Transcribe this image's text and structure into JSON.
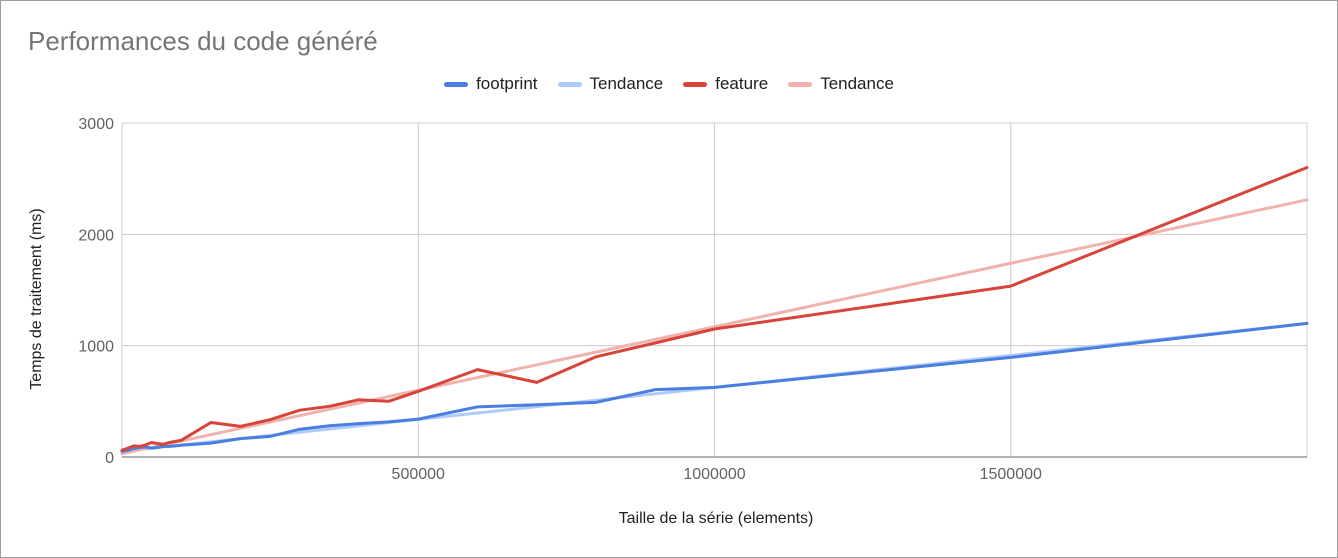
{
  "chart_data": {
    "type": "line",
    "title": "Performances du code généré",
    "xlabel": "Taille de la série (elements)",
    "ylabel": "Temps de traitement (ms)",
    "xlim": [
      0,
      2000000
    ],
    "ylim": [
      0,
      3000
    ],
    "x_ticks": [
      500000,
      1000000,
      1500000
    ],
    "x_tick_labels": [
      "500000",
      "1000000",
      "1500000"
    ],
    "y_ticks": [
      0,
      1000,
      2000,
      3000
    ],
    "y_tick_labels": [
      "0",
      "1000",
      "2000",
      "3000"
    ],
    "grid": true,
    "legend_position": "top",
    "series": [
      {
        "name": "footprint",
        "color": "#4a7fe0",
        "width": 3,
        "x": [
          0,
          10000,
          20000,
          30000,
          40000,
          50000,
          60000,
          70000,
          80000,
          90000,
          100000,
          150000,
          200000,
          250000,
          300000,
          350000,
          400000,
          450000,
          500000,
          600000,
          700000,
          800000,
          900000,
          1000000,
          1500000,
          2000000
        ],
        "values": [
          50,
          60,
          75,
          85,
          90,
          80,
          85,
          95,
          95,
          100,
          105,
          125,
          165,
          185,
          250,
          280,
          300,
          315,
          340,
          450,
          470,
          490,
          605,
          625,
          895,
          1200
        ]
      },
      {
        "name": "Tendance",
        "color": "#aecbfa",
        "width": 3,
        "x": [
          0,
          2000000
        ],
        "values": [
          50,
          1200
        ]
      },
      {
        "name": "feature",
        "color": "#d8443a",
        "width": 3,
        "x": [
          0,
          10000,
          20000,
          30000,
          40000,
          50000,
          60000,
          70000,
          80000,
          90000,
          100000,
          150000,
          200000,
          250000,
          300000,
          350000,
          400000,
          450000,
          500000,
          600000,
          700000,
          800000,
          1000000,
          1500000,
          2000000
        ],
        "values": [
          60,
          80,
          100,
          95,
          110,
          130,
          120,
          115,
          130,
          140,
          150,
          310,
          275,
          335,
          420,
          455,
          515,
          500,
          590,
          785,
          670,
          900,
          1150,
          1535,
          2600
        ]
      },
      {
        "name": "Tendance",
        "color": "#f0b2ad",
        "width": 3,
        "x": [
          0,
          2000000
        ],
        "values": [
          30,
          2310
        ]
      }
    ]
  }
}
